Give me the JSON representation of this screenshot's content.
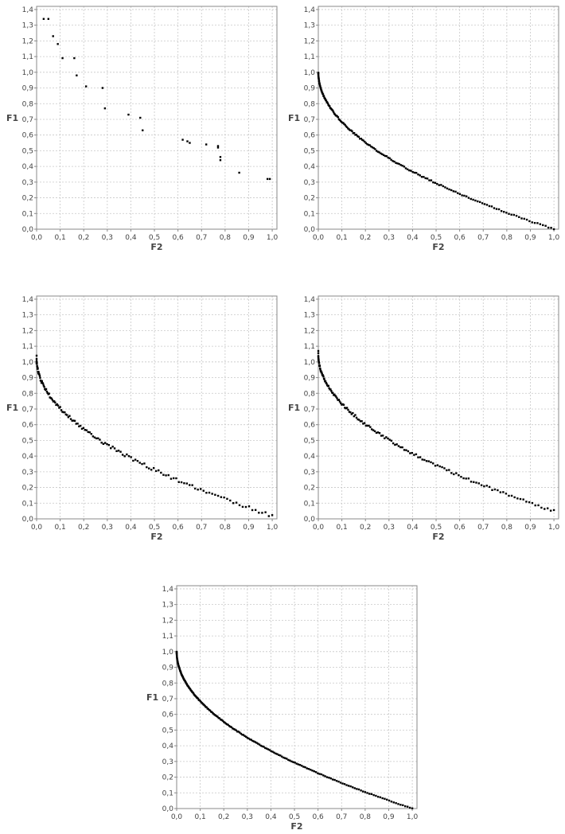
{
  "colors": {
    "background": "#ffffff",
    "plot_border": "#888888",
    "grid": "#c8c8c8",
    "point": "#000000",
    "text": "#444444"
  },
  "chart_data": [
    {
      "type": "scatter",
      "xlabel": "F2",
      "ylabel": "F1",
      "xlim": [
        0,
        1.02
      ],
      "ylim": [
        0,
        1.42
      ],
      "grid": true,
      "x_ticks": [
        "0,0",
        "0,1",
        "0,2",
        "0,3",
        "0,4",
        "0,5",
        "0,6",
        "0,7",
        "0,8",
        "0,9",
        "1,0"
      ],
      "y_ticks": [
        "0,0",
        "0,1",
        "0,2",
        "0,3",
        "0,4",
        "0,5",
        "0,6",
        "0,7",
        "0,8",
        "0,9",
        "1,0",
        "1,1",
        "1,2",
        "1,3",
        "1,4"
      ],
      "series": [
        {
          "points": [
            [
              0.03,
              1.34
            ],
            [
              0.05,
              1.34
            ],
            [
              0.07,
              1.23
            ],
            [
              0.09,
              1.18
            ],
            [
              0.11,
              1.09
            ],
            [
              0.16,
              1.09
            ],
            [
              0.17,
              0.98
            ],
            [
              0.21,
              0.91
            ],
            [
              0.28,
              0.9
            ],
            [
              0.29,
              0.77
            ],
            [
              0.39,
              0.73
            ],
            [
              0.44,
              0.71
            ],
            [
              0.45,
              0.63
            ],
            [
              0.62,
              0.57
            ],
            [
              0.64,
              0.56
            ],
            [
              0.65,
              0.55
            ],
            [
              0.72,
              0.54
            ],
            [
              0.77,
              0.53
            ],
            [
              0.77,
              0.52
            ],
            [
              0.78,
              0.46
            ],
            [
              0.78,
              0.44
            ],
            [
              0.86,
              0.36
            ],
            [
              0.98,
              0.32
            ],
            [
              0.99,
              0.32
            ]
          ]
        }
      ]
    },
    {
      "type": "scatter",
      "xlabel": "F2",
      "ylabel": "F1",
      "xlim": [
        0,
        1.02
      ],
      "ylim": [
        0,
        1.42
      ],
      "grid": true,
      "x_ticks": [
        "0,0",
        "0,1",
        "0,2",
        "0,3",
        "0,4",
        "0,5",
        "0,6",
        "0,7",
        "0,8",
        "0,9",
        "1,0"
      ],
      "y_ticks": [
        "0,0",
        "0,1",
        "0,2",
        "0,3",
        "0,4",
        "0,5",
        "0,6",
        "0,7",
        "0,8",
        "0,9",
        "1,0",
        "1,1",
        "1,2",
        "1,3",
        "1,4"
      ],
      "series": [
        {
          "curve": "1 - sqrt(x)",
          "x_range": [
            0.0,
            1.0
          ],
          "n_points": 170,
          "y_offset": 0.0,
          "jitter": 0.004
        }
      ]
    },
    {
      "type": "scatter",
      "xlabel": "F2",
      "ylabel": "F1",
      "xlim": [
        0,
        1.02
      ],
      "ylim": [
        0,
        1.42
      ],
      "grid": true,
      "x_ticks": [
        "0,0",
        "0,1",
        "0,2",
        "0,3",
        "0,4",
        "0,5",
        "0,6",
        "0,7",
        "0,8",
        "0,9",
        "1,0"
      ],
      "y_ticks": [
        "0,0",
        "0,1",
        "0,2",
        "0,3",
        "0,4",
        "0,5",
        "0,6",
        "0,7",
        "0,8",
        "0,9",
        "1,0",
        "1,1",
        "1,2",
        "1,3",
        "1,4"
      ],
      "series": [
        {
          "curve": "1 - sqrt(x)",
          "x_range": [
            0.0,
            1.0
          ],
          "n_points": 140,
          "y_offset": 0.02,
          "jitter": 0.01,
          "extra_points": [
            [
              0.0,
              1.04
            ],
            [
              0.0,
              0.99
            ]
          ]
        }
      ]
    },
    {
      "type": "scatter",
      "xlabel": "F2",
      "ylabel": "F1",
      "xlim": [
        0,
        1.02
      ],
      "ylim": [
        0,
        1.42
      ],
      "grid": true,
      "x_ticks": [
        "0,0",
        "0,1",
        "0,2",
        "0,3",
        "0,4",
        "0,5",
        "0,6",
        "0,7",
        "0,8",
        "0,9",
        "1,0"
      ],
      "y_ticks": [
        "0,0",
        "0,1",
        "0,2",
        "0,3",
        "0,4",
        "0,5",
        "0,6",
        "0,7",
        "0,8",
        "0,9",
        "1,0",
        "1,1",
        "1,2",
        "1,3",
        "1,4"
      ],
      "series": [
        {
          "curve": "1 - sqrt(x)",
          "x_range": [
            0.0,
            1.0
          ],
          "n_points": 150,
          "y_offset": 0.05,
          "jitter": 0.008,
          "extra_points": [
            [
              0.0,
              1.07
            ]
          ]
        }
      ]
    },
    {
      "type": "scatter",
      "xlabel": "F2",
      "ylabel": "F1",
      "xlim": [
        0,
        1.02
      ],
      "ylim": [
        0,
        1.42
      ],
      "grid": true,
      "x_ticks": [
        "0,0",
        "0,1",
        "0,2",
        "0,3",
        "0,4",
        "0,5",
        "0,6",
        "0,7",
        "0,8",
        "0,9",
        "1,0"
      ],
      "y_ticks": [
        "0,0",
        "0,1",
        "0,2",
        "0,3",
        "0,4",
        "0,5",
        "0,6",
        "0,7",
        "0,8",
        "0,9",
        "1,0",
        "1,1",
        "1,2",
        "1,3",
        "1,4"
      ],
      "series": [
        {
          "curve": "1 - sqrt(x)",
          "x_range": [
            0.0,
            1.0
          ],
          "n_points": 200,
          "y_offset": 0.0,
          "jitter": 0.002
        }
      ]
    }
  ]
}
